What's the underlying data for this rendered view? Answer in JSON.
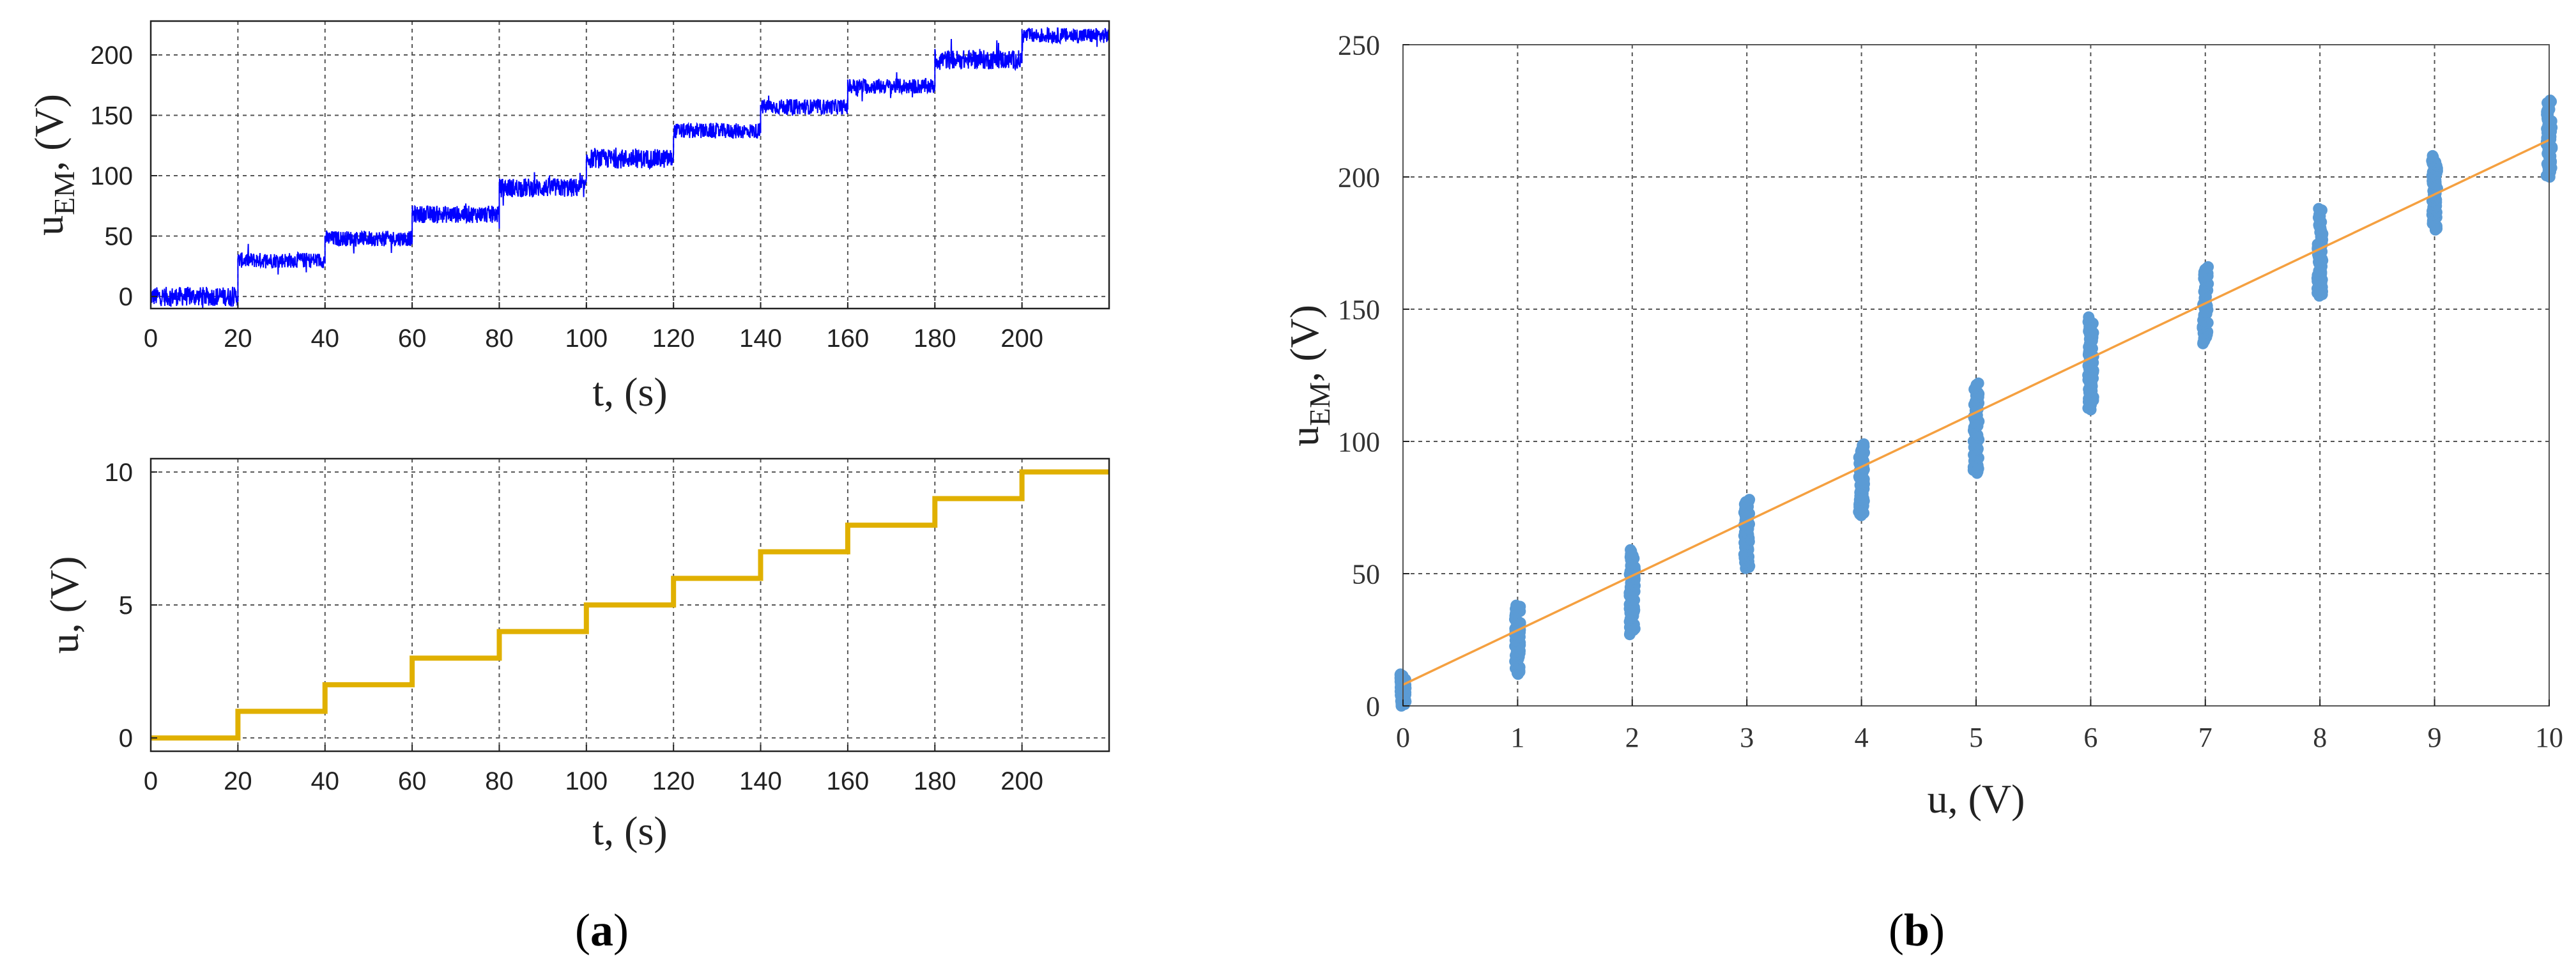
{
  "chart_data": [
    {
      "panel": "a-top",
      "type": "line",
      "xlabel": "t, (s)",
      "ylabel_main": "u",
      "ylabel_sub": "EM",
      "ylabel_suffix": ", (V)",
      "xlim": [
        0,
        220
      ],
      "ylim": [
        -10,
        228
      ],
      "xticks": [
        0,
        20,
        40,
        60,
        80,
        100,
        120,
        140,
        160,
        180,
        200
      ],
      "yticks": [
        0,
        50,
        100,
        150,
        200
      ],
      "grid": true,
      "line_color": "#0000ff",
      "series": [
        {
          "x": [
            0,
            20,
            20,
            40,
            40,
            60,
            60,
            80,
            80,
            100,
            100,
            120,
            120,
            140,
            140,
            160,
            160,
            180,
            180,
            200,
            200,
            220
          ],
          "y": [
            0,
            0,
            30,
            30,
            48,
            48,
            68,
            68,
            90,
            90,
            114,
            114,
            137,
            137,
            157,
            157,
            174,
            174,
            196,
            196,
            216,
            216
          ],
          "noise_amplitude": [
            10,
            8,
            8,
            9,
            10,
            10,
            8,
            8,
            8,
            10,
            8
          ]
        }
      ]
    },
    {
      "panel": "a-bottom",
      "type": "line",
      "xlabel": "t, (s)",
      "ylabel": "u, (V)",
      "xlim": [
        0,
        220
      ],
      "ylim": [
        -0.5,
        10.5
      ],
      "xticks": [
        0,
        20,
        40,
        60,
        80,
        100,
        120,
        140,
        160,
        180,
        200
      ],
      "yticks": [
        0,
        5,
        10
      ],
      "grid": true,
      "line_color": "#e0b000",
      "series": [
        {
          "x": [
            0,
            20,
            20,
            40,
            40,
            60,
            60,
            80,
            80,
            100,
            100,
            120,
            120,
            140,
            140,
            160,
            160,
            180,
            180,
            200,
            200,
            220
          ],
          "y": [
            0,
            0,
            1,
            1,
            2,
            2,
            3,
            3,
            4,
            4,
            5,
            5,
            6,
            6,
            7,
            7,
            8,
            8,
            9,
            9,
            10,
            10
          ]
        }
      ]
    },
    {
      "panel": "b",
      "type": "scatter",
      "xlabel": "u, (V)",
      "ylabel_main": "u",
      "ylabel_sub": "EM",
      "ylabel_suffix": ", (V)",
      "xlim": [
        0,
        10
      ],
      "ylim": [
        0,
        250
      ],
      "xticks": [
        0,
        1,
        2,
        3,
        4,
        5,
        6,
        7,
        8,
        9,
        10
      ],
      "yticks": [
        0,
        50,
        100,
        150,
        200,
        250
      ],
      "grid": true,
      "point_color": "#5b9bd5",
      "fit_color": "#f5a040",
      "clusters": [
        {
          "x": 0,
          "ymin": 0,
          "ymax": 12
        },
        {
          "x": 1,
          "ymin": 12,
          "ymax": 38
        },
        {
          "x": 2,
          "ymin": 27,
          "ymax": 59
        },
        {
          "x": 3,
          "ymin": 52,
          "ymax": 78
        },
        {
          "x": 4,
          "ymin": 72,
          "ymax": 99
        },
        {
          "x": 5,
          "ymin": 88,
          "ymax": 122
        },
        {
          "x": 6,
          "ymin": 112,
          "ymax": 147
        },
        {
          "x": 7,
          "ymin": 137,
          "ymax": 166
        },
        {
          "x": 8,
          "ymin": 155,
          "ymax": 188
        },
        {
          "x": 9,
          "ymin": 180,
          "ymax": 208
        },
        {
          "x": 10,
          "ymin": 200,
          "ymax": 229
        }
      ],
      "fit_line": {
        "x": [
          0,
          10
        ],
        "y": [
          8,
          214
        ]
      }
    }
  ],
  "captions": {
    "a": {
      "open": "(",
      "letter": "a",
      "close": ")"
    },
    "b": {
      "open": "(",
      "letter": "b",
      "close": ")"
    }
  }
}
